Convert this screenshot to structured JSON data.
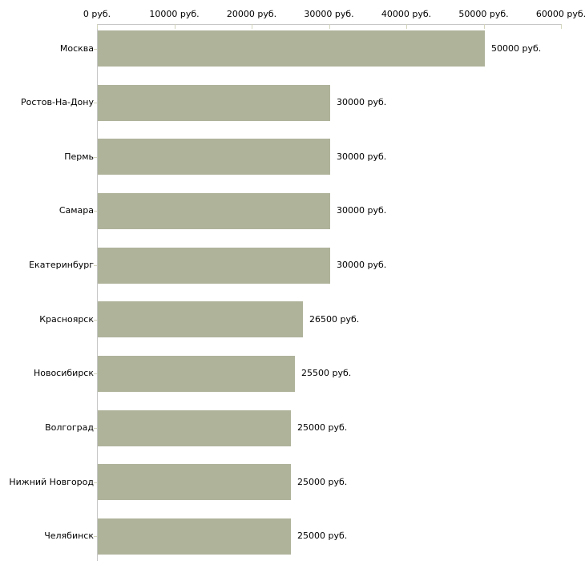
{
  "page": {
    "background": "#ffffff"
  },
  "chart_data": {
    "type": "bar",
    "orientation": "horizontal",
    "title": "",
    "xlabel": "",
    "ylabel": "",
    "categories": [
      "Москва",
      "Ростов-На-Дону",
      "Пермь",
      "Самара",
      "Екатеринбург",
      "Красноярск",
      "Новосибирск",
      "Волгоград",
      "Нижний Новгород",
      "Челябинск"
    ],
    "values": [
      50000,
      30000,
      30000,
      30000,
      30000,
      26500,
      25500,
      25000,
      25000,
      25000
    ],
    "value_labels": [
      "50000 руб.",
      "30000 руб.",
      "30000 руб.",
      "30000 руб.",
      "30000 руб.",
      "26500 руб.",
      "25500 руб.",
      "25000 руб.",
      "25000 руб.",
      "25000 руб."
    ],
    "x_axis": {
      "position": "top",
      "min": 0,
      "max": 60000,
      "ticks": [
        0,
        10000,
        20000,
        30000,
        40000,
        50000,
        60000
      ],
      "tick_labels": [
        "0 руб.",
        "10000 руб.",
        "20000 руб.",
        "30000 руб.",
        "40000 руб.",
        "50000 руб.",
        "60000 руб."
      ]
    },
    "grid": false,
    "legend": false,
    "colors": {
      "bar": "#aeb39a",
      "axis_line": "#c6c6c6",
      "tick": "#d4d5bc",
      "text": "#000000",
      "background": "#ffffff"
    }
  }
}
